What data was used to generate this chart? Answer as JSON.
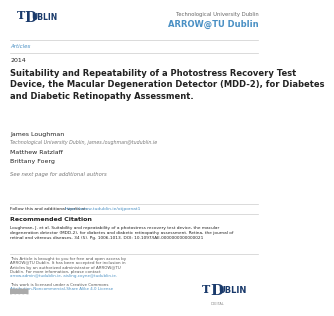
{
  "bg_color": "#ffffff",
  "separator_color": "#cccccc",
  "arrow_color": "#4a90c4",
  "link_color": "#4a90c4",
  "text_dark": "#222222",
  "text_gray": "#555555",
  "text_light": "#777777",
  "section_label": "Articles",
  "year": "2014",
  "title": "Suitability and Repeatability of a Photostress Recovery Test\nDevice, the Macular Degeneration Detector (MDD-2), for Diabetes\nand Diabetic Retinopathy Assessment.",
  "author1": "James Loughman",
  "author1_affil": "Technological University Dublin, james.loughman@tudublin.ie",
  "author2": "Matthew Ratzlaff",
  "author3": "Brittany Foerg",
  "see_next": "See next page for additional authors",
  "follow_text": "Follow this and additional works at: ",
  "follow_link": "https://arrow.tudublin.ie/otjpornat1",
  "rec_citation_title": "Recommended Citation",
  "rec_citation_body": "Loughman, J. et al. Suitability and repeatability of a photostress recovery test device, the macular\ndegeneration detector (MDD-2), for diabetes and diabetic retinopathy assessment. Retina, the journal of\nretinal and vitreous diseases, 34 (5). Pg. 1006-1013. DOI: 10.1097/IAE.0000000000000021",
  "tu_dublin_color": "#1a3a6b",
  "arrow_text": "ARROW@TU Dublin",
  "tu_top_right": "Technological University Dublin",
  "footer_lines": [
    [
      "This Article is brought to you for free and open access by",
      "#555555"
    ],
    [
      "ARROW@TU Dublin. It has been accepted for inclusion in",
      "#555555"
    ],
    [
      "Articles by an authorized administrator of ARROW@TU",
      "#555555"
    ],
    [
      "Dublin. For more information, please contact",
      "#555555"
    ],
    [
      "arrow.admin@tudublin.ie, aisling.coyne@tudublin.ie.",
      "#4a90c4"
    ],
    [
      "",
      "#555555"
    ],
    [
      "This work is licensed under a Creative Commons",
      "#555555"
    ],
    [
      "Attribution-Noncommercial-Share Alike 4.0 License",
      "#4a90c4"
    ]
  ]
}
